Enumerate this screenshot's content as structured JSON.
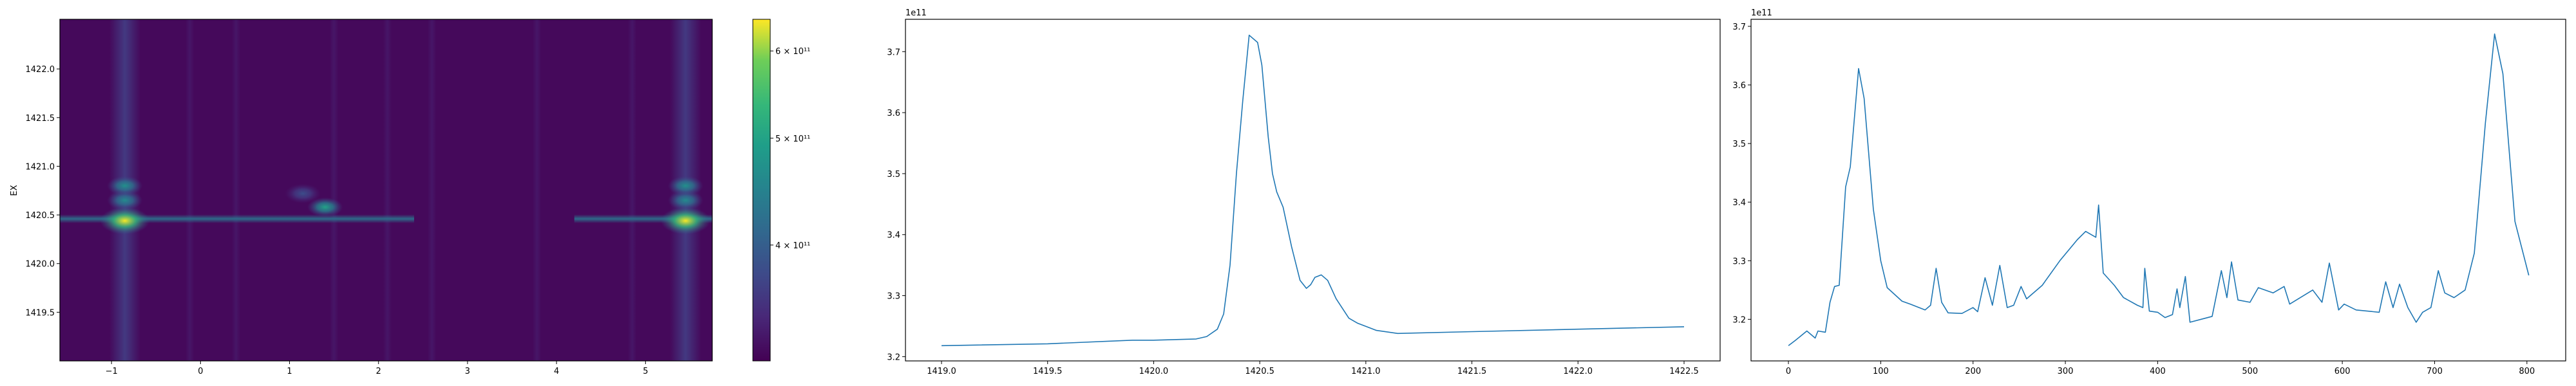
{
  "chart_data": [
    {
      "type": "heatmap",
      "ylabel": "EX",
      "xlabel": "",
      "xlim": [
        -1.58,
        5.75
      ],
      "ylim": [
        1419.0,
        1422.51
      ],
      "xticks": [
        -1,
        0,
        1,
        2,
        3,
        4,
        5
      ],
      "xtick_labels": [
        "−1",
        "0",
        "1",
        "2",
        "3",
        "4",
        "5"
      ],
      "yticks": [
        1419.5,
        1420.0,
        1420.5,
        1421.0,
        1421.5,
        1422.0
      ],
      "ytick_labels": [
        "1419.5",
        "1420.0",
        "1420.5",
        "1421.0",
        "1421.5",
        "1422.0"
      ],
      "colormap": "viridis",
      "colorbar": {
        "scale": "log",
        "range": [
          314000000000.0,
          641000000000.0
        ],
        "ticks": [
          400000000000.0,
          500000000000.0,
          600000000000.0
        ],
        "tick_labels": [
          "4 × 10¹¹",
          "5 × 10¹¹",
          "6 × 10¹¹"
        ]
      },
      "background_value": 320000000000.0,
      "vertical_bands": [
        {
          "x": -0.85,
          "value": 360000000000.0
        },
        {
          "x": -0.12,
          "value": 330000000000.0
        },
        {
          "x": 0.4,
          "value": 330000000000.0
        },
        {
          "x": 1.5,
          "value": 330000000000.0
        },
        {
          "x": 2.1,
          "value": 330000000000.0
        },
        {
          "x": 2.6,
          "value": 330000000000.0
        },
        {
          "x": 3.78,
          "value": 330000000000.0
        },
        {
          "x": 4.85,
          "value": 330000000000.0
        },
        {
          "x": 5.45,
          "value": 360000000000.0
        }
      ],
      "ridge": {
        "y": 1420.46,
        "value": 430000000000.0,
        "segments": [
          [
            -1.58,
            2.4
          ],
          [
            4.2,
            5.75
          ]
        ]
      },
      "hotspots": [
        {
          "x": -0.85,
          "y": 1420.44,
          "value": 640000000000.0
        },
        {
          "x": -0.85,
          "y": 1420.65,
          "value": 460000000000.0
        },
        {
          "x": -0.85,
          "y": 1420.8,
          "value": 470000000000.0
        },
        {
          "x": 1.4,
          "y": 1420.58,
          "value": 500000000000.0
        },
        {
          "x": 1.15,
          "y": 1420.72,
          "value": 380000000000.0
        },
        {
          "x": 5.45,
          "y": 1420.44,
          "value": 640000000000.0
        },
        {
          "x": 5.45,
          "y": 1420.65,
          "value": 460000000000.0
        },
        {
          "x": 5.45,
          "y": 1420.8,
          "value": 470000000000.0
        }
      ]
    },
    {
      "type": "line",
      "offset_text": "1e11",
      "xlim": [
        1418.83,
        1422.67
      ],
      "ylim": [
        3.193,
        3.753
      ],
      "xticks": [
        1419.0,
        1419.5,
        1420.0,
        1420.5,
        1421.0,
        1421.5,
        1422.0,
        1422.5
      ],
      "xtick_labels": [
        "1419.0",
        "1419.5",
        "1420.0",
        "1420.5",
        "1421.0",
        "1421.5",
        "1422.0",
        "1422.5"
      ],
      "yticks": [
        3.2,
        3.3,
        3.4,
        3.5,
        3.6,
        3.7
      ],
      "ytick_labels": [
        "3.2",
        "3.3",
        "3.4",
        "3.5",
        "3.6",
        "3.7"
      ],
      "color": "#1f77b4",
      "x": [
        1419.0,
        1419.5,
        1419.9,
        1420.0,
        1420.2,
        1420.25,
        1420.3,
        1420.33,
        1420.36,
        1420.39,
        1420.42,
        1420.45,
        1420.49,
        1420.51,
        1420.54,
        1420.56,
        1420.58,
        1420.61,
        1420.65,
        1420.69,
        1420.72,
        1420.74,
        1420.76,
        1420.79,
        1420.82,
        1420.86,
        1420.92,
        1420.96,
        1421.05,
        1421.15,
        1421.5,
        1422.0,
        1422.5
      ],
      "y": [
        3.218,
        3.221,
        3.227,
        3.227,
        3.229,
        3.233,
        3.245,
        3.27,
        3.35,
        3.5,
        3.62,
        3.727,
        3.715,
        3.678,
        3.56,
        3.5,
        3.47,
        3.445,
        3.38,
        3.325,
        3.312,
        3.318,
        3.33,
        3.334,
        3.325,
        3.295,
        3.263,
        3.255,
        3.243,
        3.238,
        3.241,
        3.245,
        3.249
      ]
    },
    {
      "type": "line",
      "offset_text": "1e11",
      "xlim": [
        -40.5,
        842
      ],
      "ylim": [
        3.129,
        3.712
      ],
      "xticks": [
        0,
        100,
        200,
        300,
        400,
        500,
        600,
        700,
        800
      ],
      "xtick_labels": [
        "0",
        "100",
        "200",
        "300",
        "400",
        "500",
        "600",
        "700",
        "800"
      ],
      "yticks": [
        3.2,
        3.3,
        3.4,
        3.5,
        3.6,
        3.7
      ],
      "ytick_labels": [
        "3.2",
        "3.3",
        "3.4",
        "3.5",
        "3.6",
        "3.7"
      ],
      "color": "#1f77b4",
      "x": [
        0,
        7.5,
        20,
        29,
        32,
        40,
        45,
        50,
        55,
        62,
        67,
        76,
        82,
        92,
        100,
        107,
        123,
        132,
        148,
        154,
        160,
        166,
        173,
        188,
        200,
        205,
        213,
        221,
        229,
        237,
        244,
        252,
        258,
        275,
        294,
        313,
        322,
        333,
        336,
        341,
        353,
        363,
        378,
        384,
        386,
        391,
        400,
        408,
        416,
        421,
        424,
        430,
        435,
        459,
        469,
        475,
        480,
        487,
        500,
        509,
        525,
        537,
        543,
        568,
        578,
        586,
        596,
        602,
        615,
        640,
        647,
        655,
        662,
        671,
        680,
        687,
        696,
        704,
        711,
        721,
        733,
        743,
        755,
        765,
        774,
        787,
        802
      ],
      "y": [
        3.155,
        3.164,
        3.18,
        3.168,
        3.18,
        3.178,
        3.229,
        3.256,
        3.258,
        3.426,
        3.46,
        3.628,
        3.577,
        3.388,
        3.3,
        3.254,
        3.231,
        3.226,
        3.216,
        3.224,
        3.287,
        3.229,
        3.211,
        3.21,
        3.22,
        3.213,
        3.271,
        3.224,
        3.292,
        3.22,
        3.224,
        3.256,
        3.235,
        3.258,
        3.3,
        3.336,
        3.35,
        3.34,
        3.395,
        3.279,
        3.258,
        3.237,
        3.224,
        3.22,
        3.287,
        3.214,
        3.212,
        3.203,
        3.208,
        3.252,
        3.22,
        3.273,
        3.195,
        3.205,
        3.283,
        3.237,
        3.298,
        3.233,
        3.229,
        3.254,
        3.245,
        3.256,
        3.226,
        3.25,
        3.229,
        3.296,
        3.216,
        3.226,
        3.216,
        3.212,
        3.264,
        3.22,
        3.26,
        3.22,
        3.195,
        3.212,
        3.22,
        3.283,
        3.245,
        3.237,
        3.25,
        3.313,
        3.535,
        3.687,
        3.619,
        3.367,
        3.275
      ]
    }
  ]
}
